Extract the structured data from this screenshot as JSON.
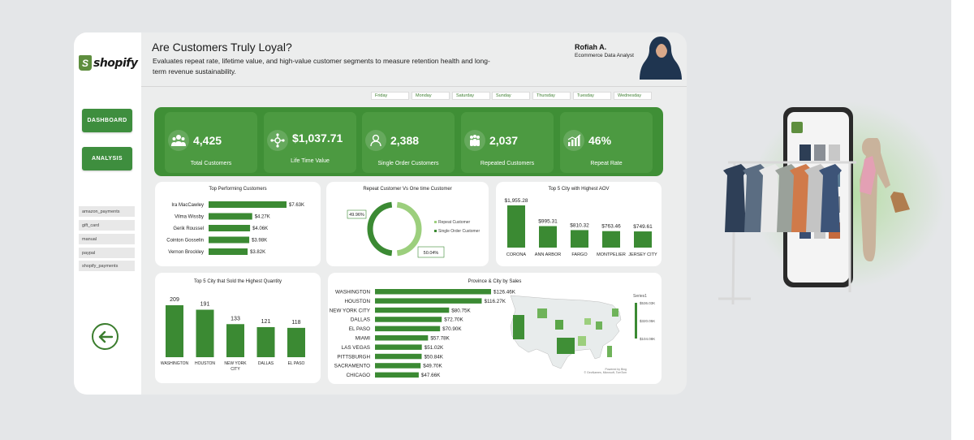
{
  "brand": {
    "word": "shopify",
    "bag_letter": "S"
  },
  "header": {
    "title": "Are Customers Truly Loyal?",
    "subtitle": "Evaluates repeat rate, lifetime value, and high-value customer segments to measure retention health and long-term revenue sustainability."
  },
  "author": {
    "name": "Rofiah A.",
    "role": "Ecommerce Data Analyst"
  },
  "nav": {
    "dashboard": "DASHBOARD",
    "analysis": "ANALYSIS"
  },
  "slicer": [
    "amazon_payments",
    "gift_card",
    "manual",
    "paypal",
    "shopify_payments"
  ],
  "days": [
    "Friday",
    "Monday",
    "Saturday",
    "Sunday",
    "Thursday",
    "Tuesday",
    "Wednesday"
  ],
  "kpis": [
    {
      "value": "4,425",
      "label": "Total Customers",
      "icon": "users-icon"
    },
    {
      "value": "$1,037.71",
      "label": "Life Time Value",
      "icon": "network-icon"
    },
    {
      "value": "2,388",
      "label": "Single  Order Customers",
      "icon": "single-user-icon"
    },
    {
      "value": "2,037",
      "label": "Repeated Customers",
      "icon": "group-icon"
    },
    {
      "value": "46%",
      "label": "Repeat Rate",
      "icon": "chart-icon"
    }
  ],
  "colors": {
    "accent": "#3f8f36",
    "bar": "#3b8a33",
    "light": "#9ccf7d"
  },
  "chart_data": [
    {
      "type": "bar",
      "orientation": "horizontal",
      "title": "Top Performing Customers",
      "categories": [
        "Ira MacCawley",
        "Vilma Wissby",
        "Gerik Roussel",
        "Cointon Gosselin",
        "Vernon Brockley"
      ],
      "values": [
        7630,
        4270,
        4060,
        3980,
        3820
      ],
      "labels": [
        "$7.63K",
        "$4.27K",
        "$4.06K",
        "$3.98K",
        "$3.82K"
      ]
    },
    {
      "type": "pie",
      "variant": "donut",
      "title": "Repeat Customer Vs One time Customer",
      "categories": [
        "Repeat Customer",
        "Single Order Customer"
      ],
      "values": [
        49.96,
        50.04
      ],
      "labels": [
        "49.96%",
        "50.04%"
      ],
      "legend": "right"
    },
    {
      "type": "bar",
      "title": "Top 5 City with Highest AOV",
      "categories": [
        "CORONA",
        "ANN ARBOR",
        "FARGO",
        "MONTPELIER",
        "JERSEY CITY"
      ],
      "values": [
        1955.28,
        995.31,
        810.32,
        763.46,
        749.61
      ],
      "labels": [
        "$1,955.28",
        "$995.31",
        "$810.32",
        "$763.46",
        "$749.61"
      ]
    },
    {
      "type": "bar",
      "title": "Top 5 City that Sold the Highest Quantity",
      "categories": [
        "WASHINGTON",
        "HOUSTON",
        "NEW YORK CITY",
        "DALLAS",
        "EL PASO"
      ],
      "values": [
        209,
        191,
        133,
        121,
        118
      ],
      "labels": [
        "209",
        "191",
        "133",
        "121",
        "118"
      ]
    },
    {
      "type": "bar",
      "orientation": "horizontal",
      "title": "Province & City by Sales",
      "categories": [
        "WASHINGTON",
        "HOUSTON",
        "NEW YORK CITY",
        "DALLAS",
        "EL PASO",
        "MIAMI",
        "LAS VEGAS",
        "PITTSBURGH",
        "SACRAMENTO",
        "CHICAGO"
      ],
      "values": [
        126460,
        116270,
        80750,
        72700,
        70900,
        57780,
        51020,
        50840,
        49700,
        47660
      ],
      "labels": [
        "$126.46K",
        "$116.27K",
        "$80.75K",
        "$72.70K",
        "$70.90K",
        "$57.78K",
        "$51.02K",
        "$50.84K",
        "$49.70K",
        "$47.66K"
      ],
      "map": {
        "legend_title": "Series1",
        "scale": [
          "$536.03K",
          "$320.05K",
          "$104.08K"
        ],
        "attribution": [
          "Powered by Bing",
          "© GeoNames, Microsoft, TomTom"
        ]
      }
    }
  ]
}
